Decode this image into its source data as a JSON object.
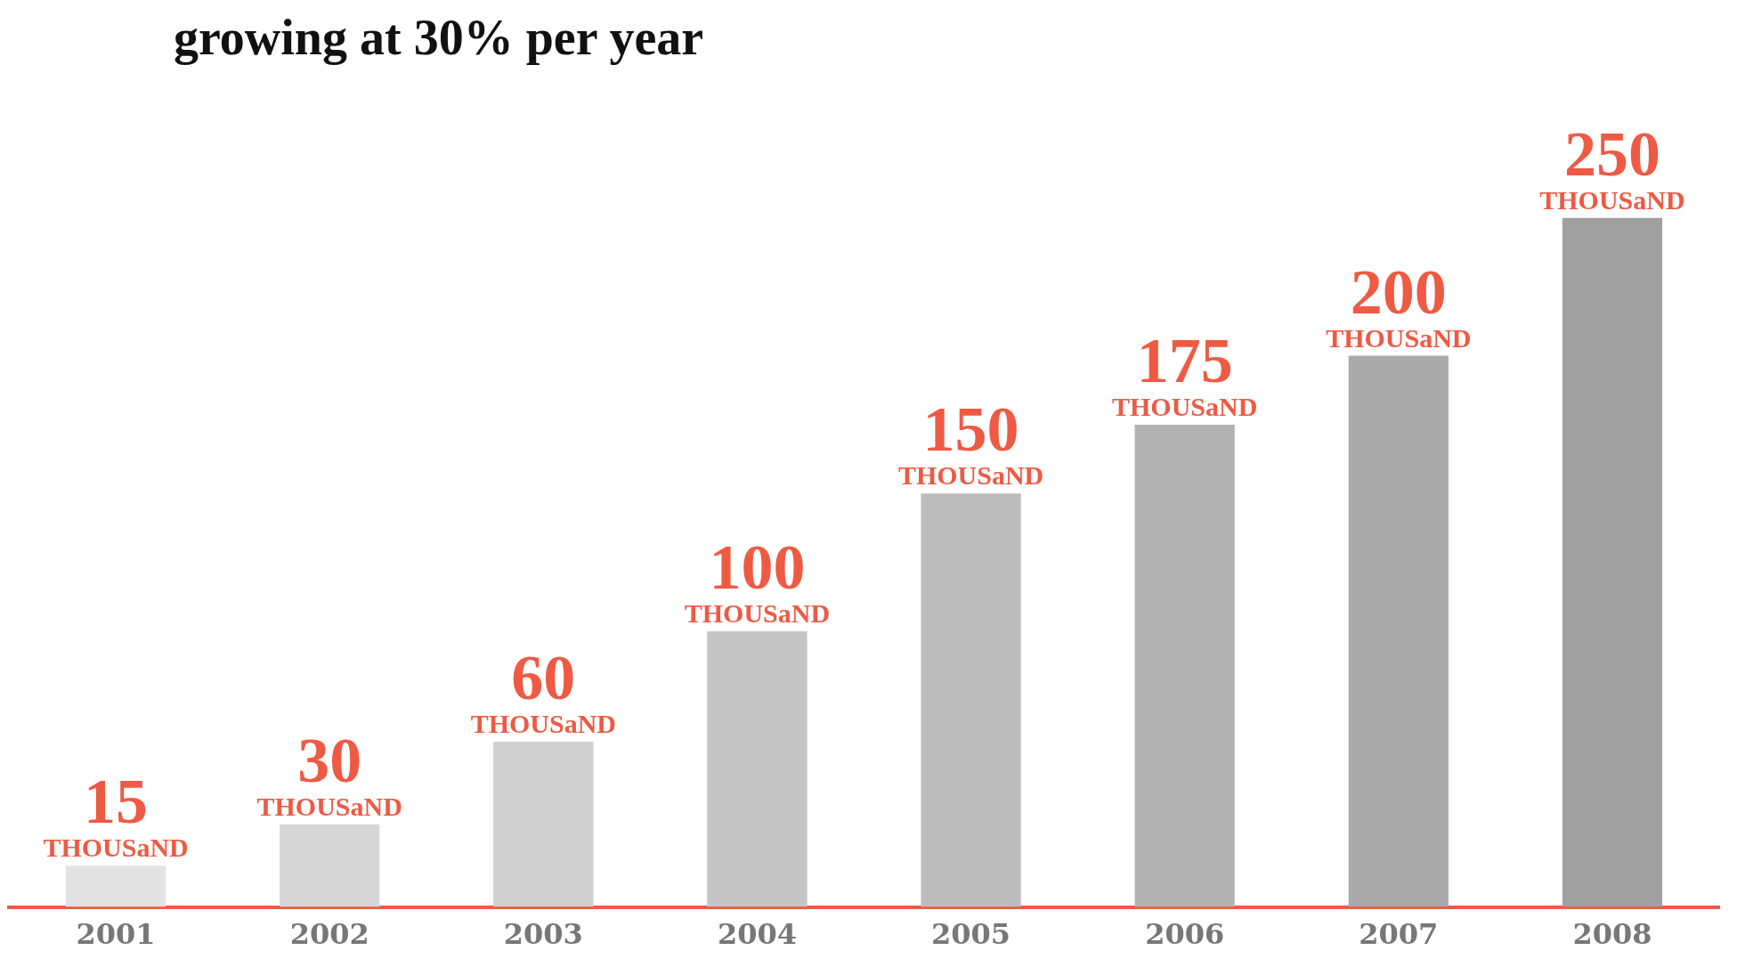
{
  "chart_data": {
    "type": "bar",
    "title": "growing at 30% per year",
    "categories": [
      "2001",
      "2002",
      "2003",
      "2004",
      "2005",
      "2006",
      "2007",
      "2008"
    ],
    "values": [
      15,
      30,
      60,
      100,
      150,
      175,
      200,
      250
    ],
    "value_labels": [
      "15 THOUSaND",
      "30 THOUSaND",
      "60 THOUSaND",
      "100 THOUSaND",
      "150 THOUSaND",
      "175 THOUSaND",
      "200 THOUSaND",
      "250 THOUSaND"
    ],
    "colors": [
      "#e2e2e2",
      "#d6d6d6",
      "#cfcfcf",
      "#c6c6c6",
      "#bcbcbc",
      "#b2b2b2",
      "#aaaaaa",
      "#a0a0a0"
    ],
    "grid": false,
    "legend": false
  }
}
